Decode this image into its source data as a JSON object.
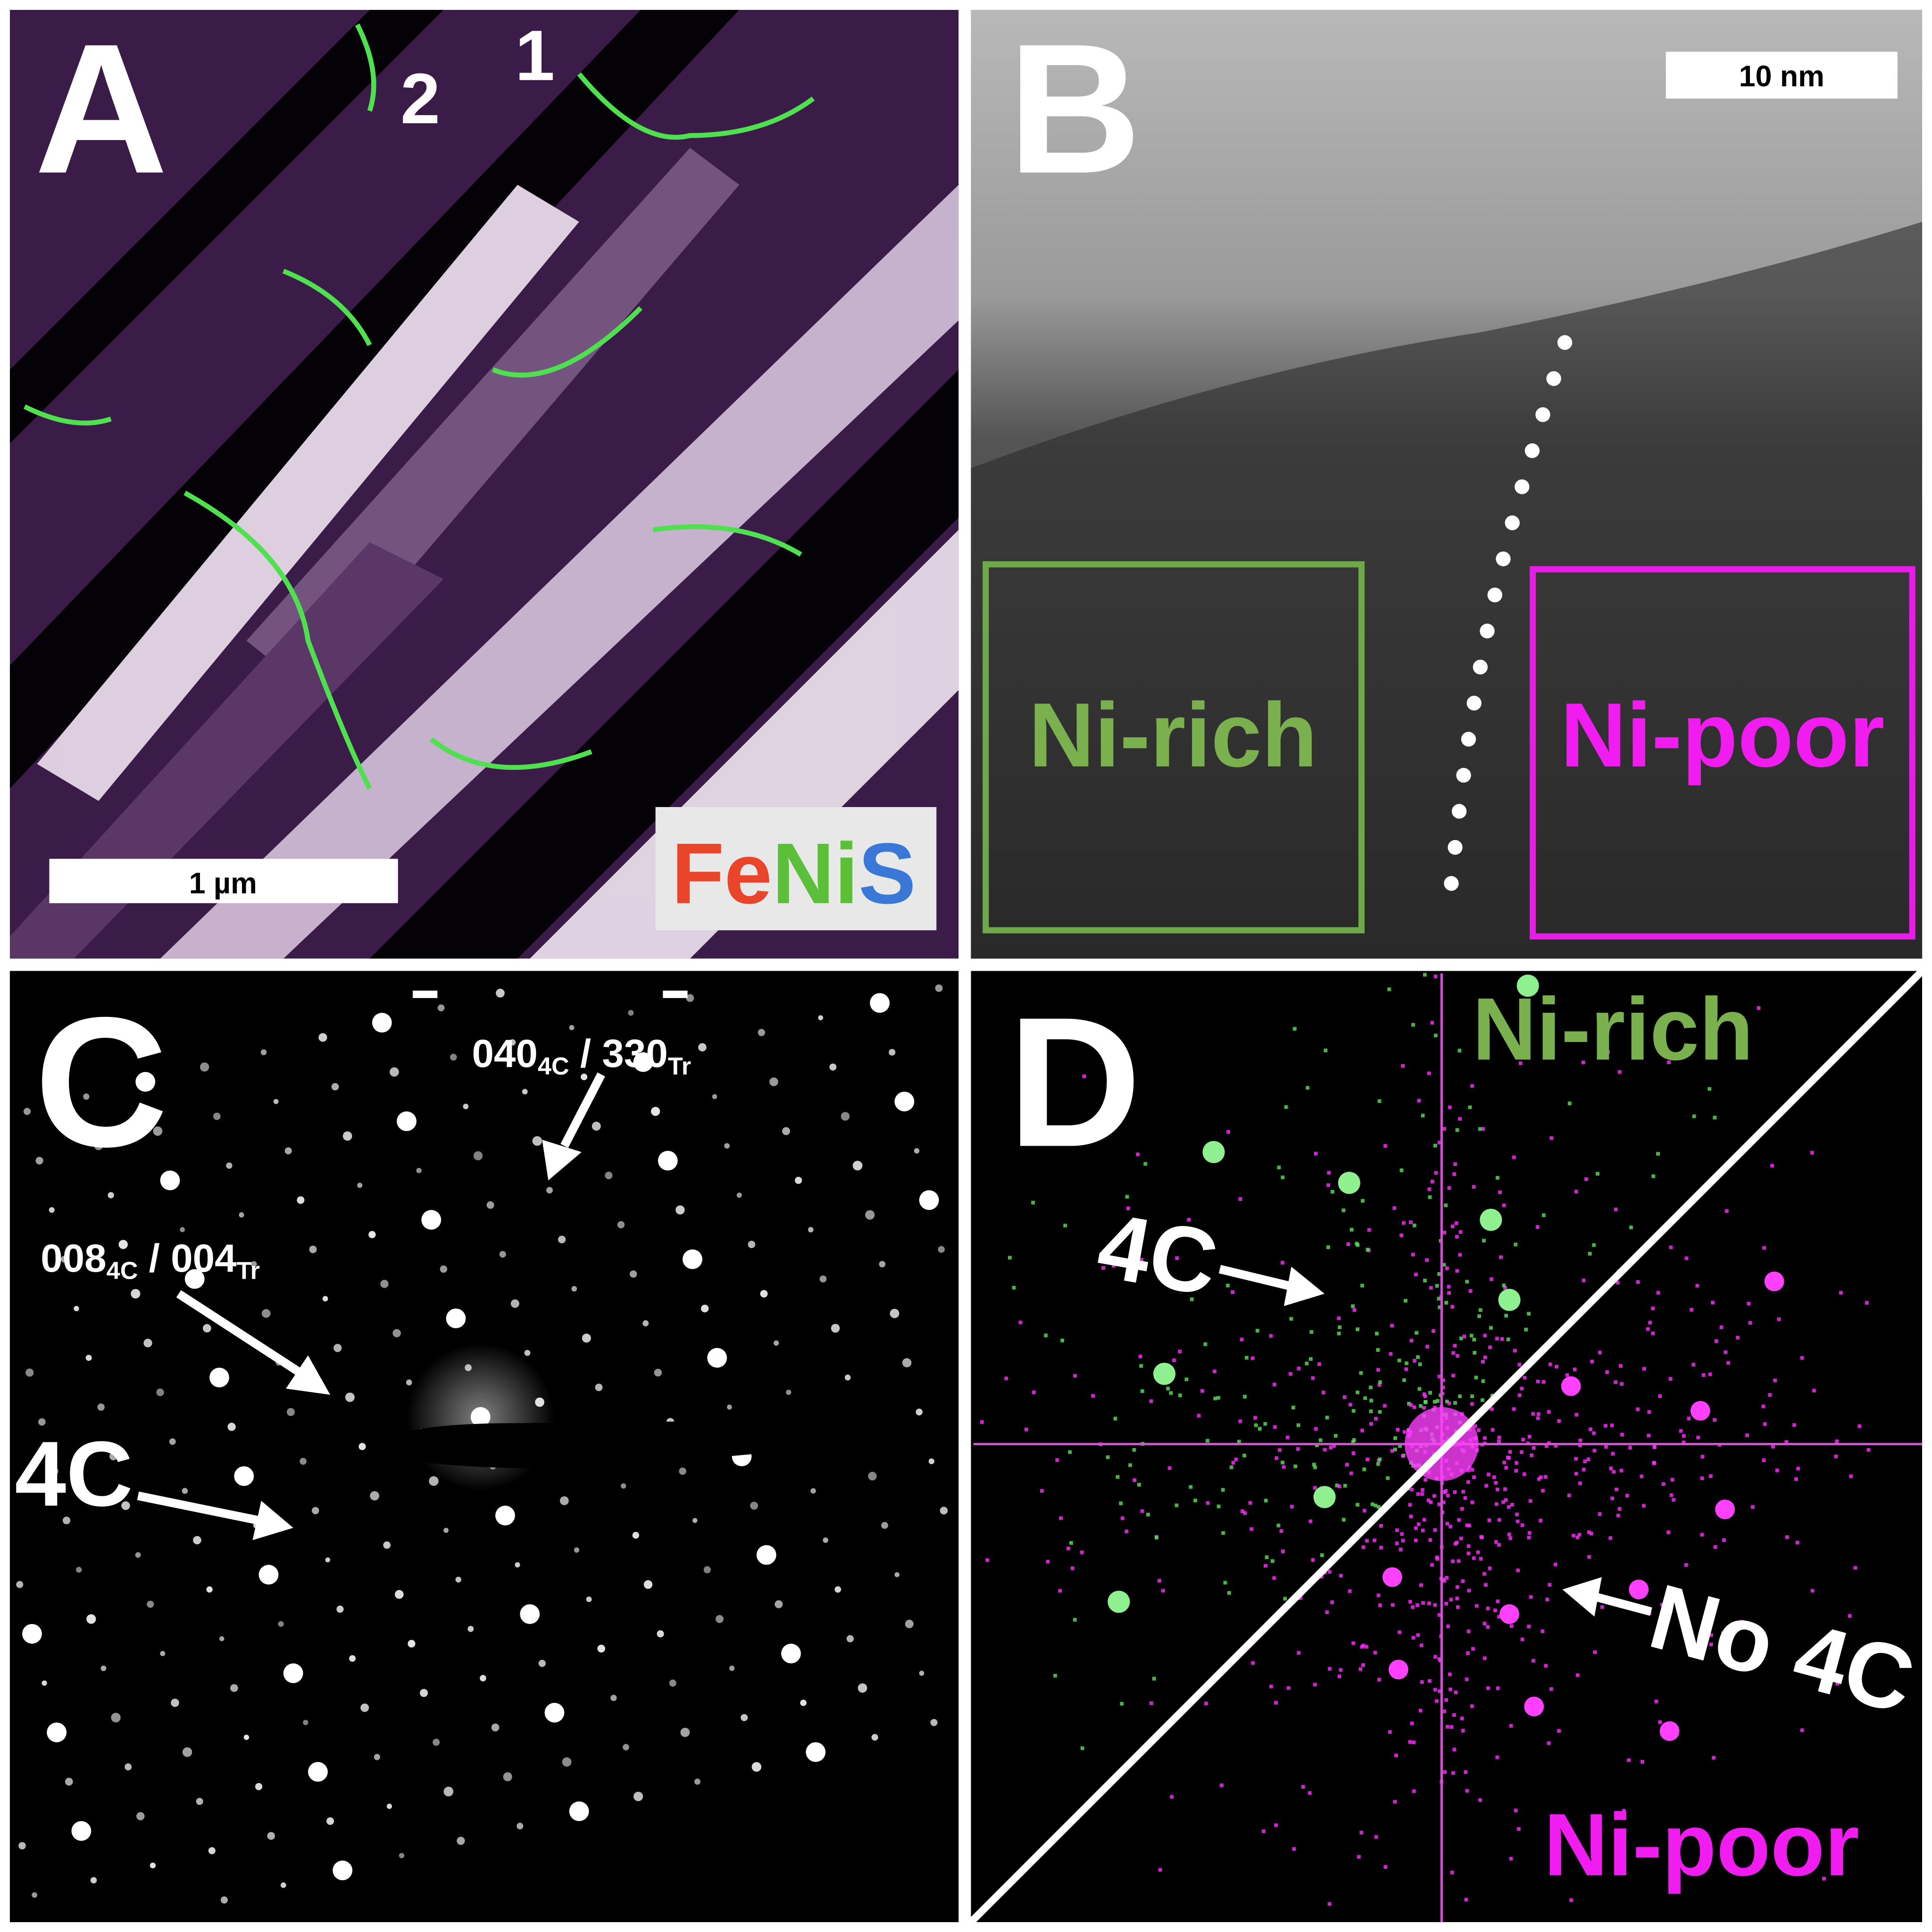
{
  "panels": [
    {
      "label": "A",
      "annotations": [
        "2",
        "1"
      ],
      "scale_bar": "1 µm",
      "legend": [
        "Fe",
        "Ni",
        "S"
      ]
    },
    {
      "label": "B",
      "scale_bar": "10 nm",
      "regions": [
        "Ni-rich",
        "Ni-poor"
      ]
    },
    {
      "label": "C",
      "annotations": [
        {
          "parts": [
            "040",
            "4C",
            " / 330",
            "Tr"
          ]
        },
        {
          "parts": [
            "008",
            "4C",
            " / 004",
            "Tr"
          ]
        },
        "4C"
      ]
    },
    {
      "label": "D",
      "regions": [
        "Ni-rich",
        "Ni-poor"
      ],
      "annotations": [
        "4C",
        "No 4C"
      ]
    }
  ]
}
